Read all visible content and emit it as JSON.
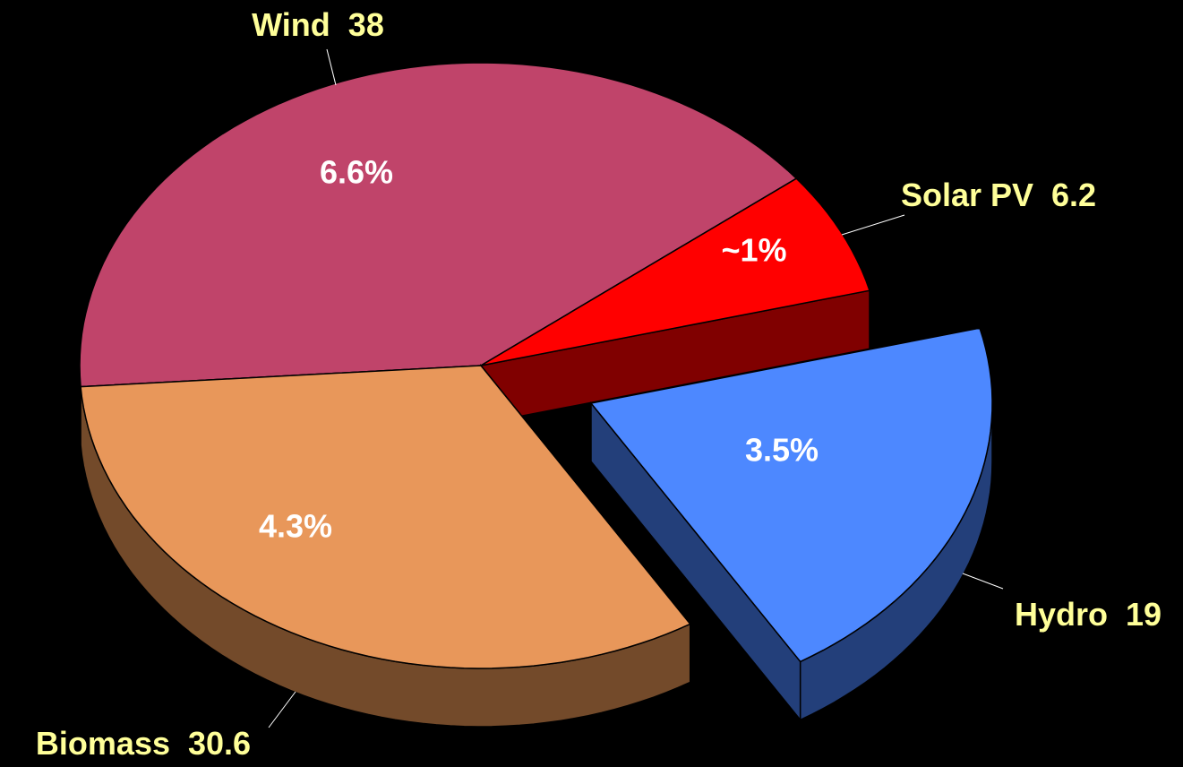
{
  "chart_data": {
    "type": "pie",
    "categories": [
      "Wind",
      "Solar PV",
      "Hydro",
      "Biomass"
    ],
    "values": [
      38,
      6.2,
      19,
      30.6
    ],
    "share_labels": [
      "6.6%",
      "~1%",
      "3.5%",
      "4.3%"
    ],
    "colors": [
      "#c0446a",
      "#ff0000",
      "#4d88ff",
      "#e8975a"
    ],
    "side_colors": [
      "#8a2f4c",
      "#800000",
      "#233f7a",
      "#734a2a"
    ],
    "exploded": [
      false,
      false,
      true,
      false
    ]
  }
}
